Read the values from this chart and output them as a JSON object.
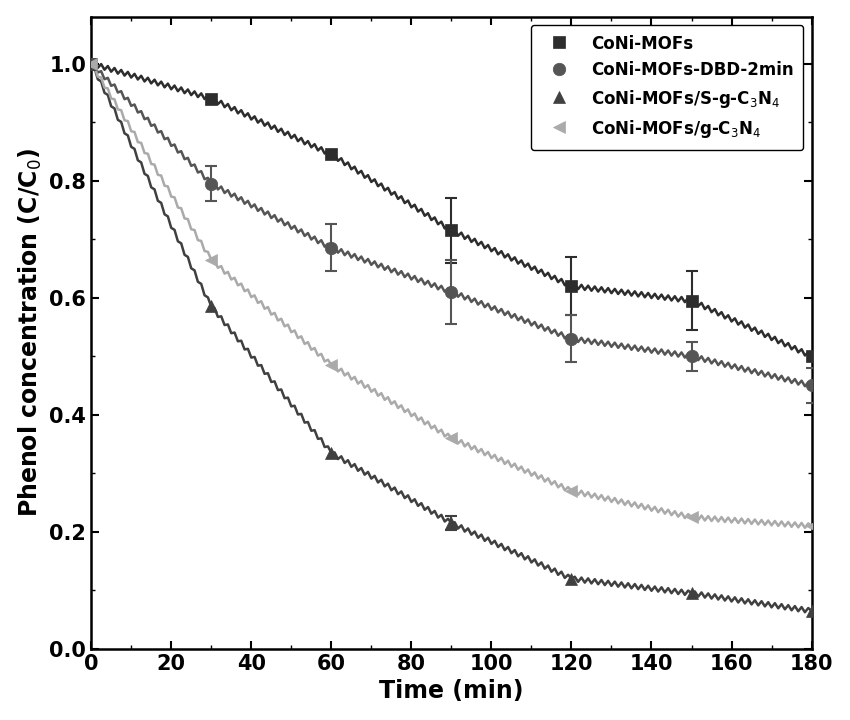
{
  "series": [
    {
      "label": "CoNi-MOFs",
      "color": "#2d2d2d",
      "marker": "s",
      "markersize": 9,
      "linewidth": 1.8,
      "x": [
        0,
        30,
        60,
        90,
        120,
        150,
        180
      ],
      "y": [
        1.0,
        0.94,
        0.845,
        0.715,
        0.62,
        0.595,
        0.5
      ],
      "yerr": [
        0.0,
        0.0,
        0.0,
        0.055,
        0.05,
        0.05,
        0.0
      ]
    },
    {
      "label": "CoNi-MOFs-DBD-2min",
      "color": "#555555",
      "marker": "o",
      "markersize": 9,
      "linewidth": 1.8,
      "x": [
        0,
        30,
        60,
        90,
        120,
        150,
        180
      ],
      "y": [
        1.0,
        0.795,
        0.685,
        0.61,
        0.53,
        0.5,
        0.45
      ],
      "yerr": [
        0.0,
        0.03,
        0.04,
        0.055,
        0.04,
        0.025,
        0.03
      ]
    },
    {
      "label": "CoNi-MOFs/S-g-C$_3$N$_4$",
      "color": "#404040",
      "marker": "^",
      "markersize": 9,
      "linewidth": 1.8,
      "x": [
        0,
        30,
        60,
        90,
        120,
        150,
        180
      ],
      "y": [
        1.0,
        0.585,
        0.335,
        0.215,
        0.12,
        0.095,
        0.065
      ],
      "yerr": [
        0.0,
        0.0,
        0.0,
        0.012,
        0.0,
        0.0,
        0.0
      ]
    },
    {
      "label": "CoNi-MOFs/g-C$_3$N$_4$",
      "color": "#aaaaaa",
      "marker": "<",
      "markersize": 9,
      "linewidth": 1.8,
      "x": [
        0,
        30,
        60,
        90,
        120,
        150,
        180
      ],
      "y": [
        1.0,
        0.665,
        0.485,
        0.36,
        0.27,
        0.225,
        0.21
      ],
      "yerr": [
        0.0,
        0.0,
        0.0,
        0.0,
        0.0,
        0.0,
        0.0
      ]
    }
  ],
  "xlabel": "Time (min)",
  "ylabel": "Phenol concentration (C/C$_0$)",
  "xlim": [
    0,
    180
  ],
  "ylim": [
    0.0,
    1.08
  ],
  "xticks": [
    0,
    20,
    40,
    60,
    80,
    100,
    120,
    140,
    160,
    180
  ],
  "yticks": [
    0.0,
    0.2,
    0.4,
    0.6,
    0.8,
    1.0
  ],
  "figsize": [
    8.5,
    7.2
  ],
  "dpi": 100,
  "background_color": "#ffffff",
  "legend_fontsize": 12,
  "axis_label_fontsize": 17,
  "tick_fontsize": 15,
  "n_zig_per_segment": 18,
  "zig_amplitude": 0.004
}
